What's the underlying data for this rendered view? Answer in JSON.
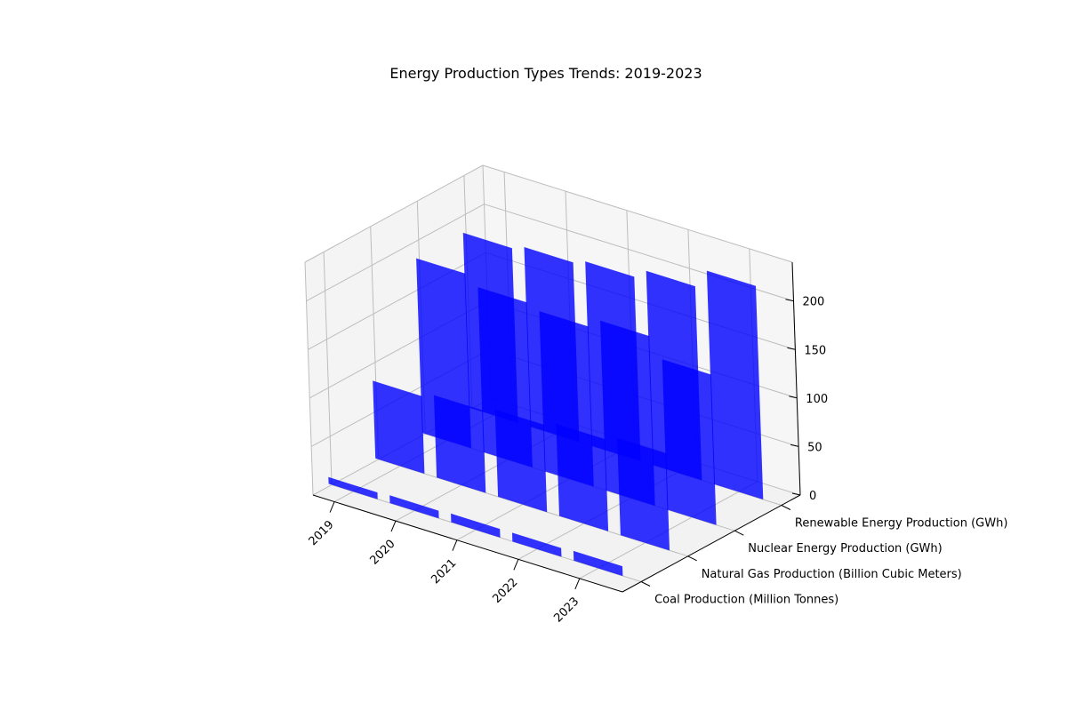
{
  "chart_data": {
    "type": "bar",
    "title": "Energy Production Types Trends: 2019-2023",
    "x_categories": [
      "2019",
      "2020",
      "2021",
      "2022",
      "2023"
    ],
    "y_categories": [
      "Coal Production (Million Tonnes)",
      "Natural Gas Production (Billion Cubic Meters)",
      "Nuclear Energy Production (GWh)",
      "Renewable Energy Production (GWh)"
    ],
    "series": [
      {
        "name": "Coal Production (Million Tonnes)",
        "values": [
          7,
          8,
          9,
          9,
          10
        ]
      },
      {
        "name": "Natural Gas Production (Billion Cubic Meters)",
        "values": [
          80,
          85,
          90,
          95,
          100
        ]
      },
      {
        "name": "Nuclear Energy Production (GWh)",
        "values": [
          180,
          170,
          165,
          175,
          155
        ]
      },
      {
        "name": "Renewable Energy Production (GWh)",
        "values": [
          180,
          185,
          190,
          200,
          220
        ]
      }
    ],
    "zlim": [
      0,
      240
    ],
    "z_ticks": [
      0,
      50,
      100,
      150,
      200
    ],
    "grid": true,
    "bar_color": "#0000ff",
    "pane_color": "#f2f2f2",
    "xlabel": "",
    "ylabel": "",
    "zlabel": ""
  }
}
